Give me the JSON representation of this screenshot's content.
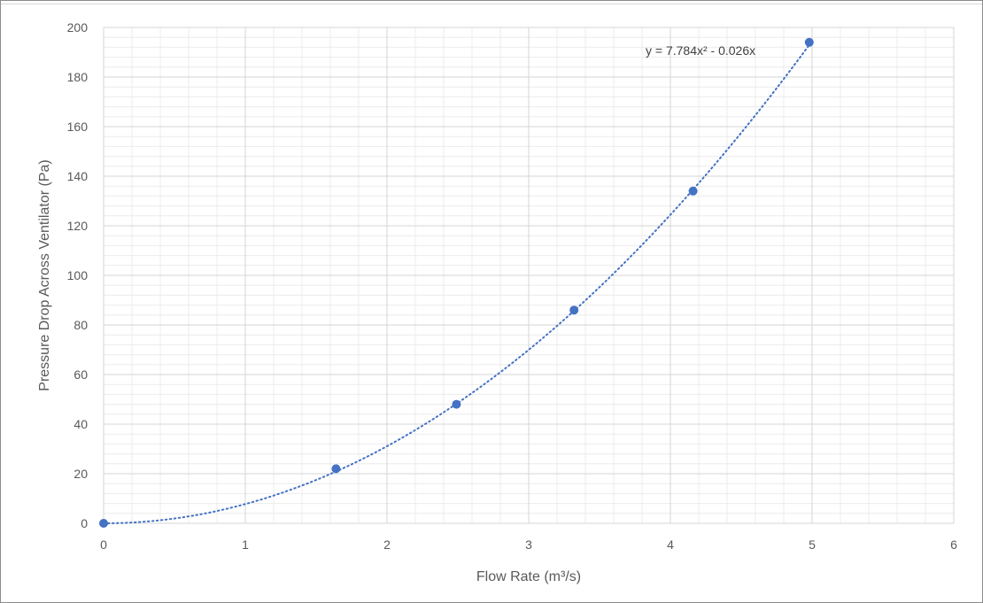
{
  "chart_data": {
    "type": "scatter",
    "xlabel": "Flow Rate (m³/s)",
    "ylabel": "Pressure Drop Across Ventilator (Pa)",
    "xlim": [
      0,
      6
    ],
    "ylim": [
      0,
      200
    ],
    "x_ticks": [
      0,
      1,
      2,
      3,
      4,
      5,
      6
    ],
    "y_ticks": [
      0,
      20,
      40,
      60,
      80,
      100,
      120,
      140,
      160,
      180,
      200
    ],
    "x_ticks_labels": [
      "0",
      "1",
      "2",
      "3",
      "4",
      "5",
      "6"
    ],
    "y_ticks_labels": [
      "0",
      "20",
      "40",
      "60",
      "80",
      "100",
      "120",
      "140",
      "160",
      "180",
      "200"
    ],
    "grid": true,
    "minor_grid": true,
    "legend": "none",
    "series": [
      {
        "color": "#4472c4",
        "x": [
          0,
          1.64,
          2.49,
          3.32,
          4.16,
          4.98
        ],
        "y": [
          0,
          22,
          48,
          86,
          134,
          194
        ]
      }
    ],
    "trendline": {
      "type": "polynomial",
      "coefficients": {
        "a": 7.784,
        "b": -0.026,
        "c": 0
      },
      "x_range": [
        0,
        4.98
      ],
      "style": "dotted",
      "color": "#4472c4",
      "equation_label": "y = 7.784x² - 0.026x"
    }
  }
}
